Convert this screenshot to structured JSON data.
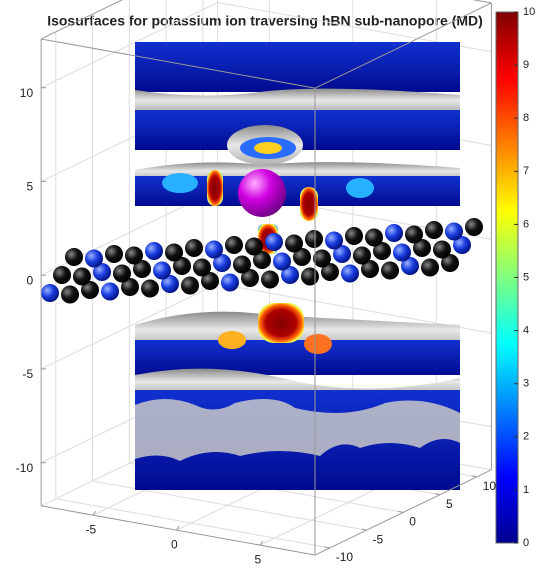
{
  "chart_data": {
    "type": "isosurface",
    "title": "Isosurfaces for potassium ion traversing hBN sub-nanopore (MD)",
    "xlim": [
      -8.1,
      8.3
    ],
    "xticks": [
      -5,
      0,
      5
    ],
    "ylim": [
      -12,
      12
    ],
    "yticks": [
      -10,
      -5,
      0,
      5,
      10
    ],
    "zlim": [
      -12.3,
      12.6
    ],
    "zticks": [
      -10,
      -5,
      0,
      5,
      10
    ],
    "grid": true,
    "colorbar": {
      "colormap": "jet",
      "clim": [
        0,
        10
      ],
      "ticks": [
        0,
        1,
        2,
        3,
        4,
        5,
        6,
        7,
        8,
        9,
        10
      ]
    }
  }
}
